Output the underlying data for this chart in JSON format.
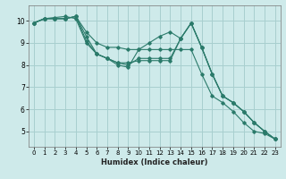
{
  "xlabel": "Humidex (Indice chaleur)",
  "xlim": [
    -0.5,
    23.5
  ],
  "ylim": [
    4.3,
    10.7
  ],
  "xticks": [
    0,
    1,
    2,
    3,
    4,
    5,
    6,
    7,
    8,
    9,
    10,
    11,
    12,
    13,
    14,
    15,
    16,
    17,
    18,
    19,
    20,
    21,
    22,
    23
  ],
  "yticks": [
    5,
    6,
    7,
    8,
    9,
    10
  ],
  "bg_color": "#ceeaea",
  "grid_color": "#a8cfcf",
  "line_color": "#2a7a6a",
  "lines": [
    {
      "x": [
        0,
        1,
        2,
        3,
        4,
        5,
        6,
        7,
        8,
        9,
        10,
        11,
        12,
        13,
        14,
        15,
        16,
        17,
        18,
        19,
        20,
        21,
        22,
        23
      ],
      "y": [
        9.9,
        10.1,
        10.1,
        10.1,
        10.2,
        9.5,
        9.0,
        8.8,
        8.8,
        8.7,
        8.7,
        8.7,
        8.7,
        8.7,
        8.7,
        8.7,
        7.6,
        6.6,
        6.3,
        5.9,
        5.4,
        5.0,
        4.9,
        4.65
      ]
    },
    {
      "x": [
        0,
        1,
        2,
        3,
        4,
        5,
        6,
        7,
        8,
        9,
        10,
        11,
        12,
        13,
        14,
        15,
        16,
        17,
        18,
        19,
        20,
        21,
        22,
        23
      ],
      "y": [
        9.9,
        10.1,
        10.1,
        10.1,
        10.2,
        9.3,
        8.5,
        8.3,
        8.1,
        8.1,
        8.2,
        8.2,
        8.2,
        8.2,
        9.2,
        9.9,
        8.8,
        7.6,
        6.6,
        6.3,
        5.9,
        5.4,
        5.0,
        4.65
      ]
    },
    {
      "x": [
        0,
        1,
        2,
        3,
        4,
        5,
        6,
        7,
        8,
        9,
        10,
        11,
        12,
        13,
        14,
        15,
        16,
        17,
        18,
        19,
        20,
        21,
        22,
        23
      ],
      "y": [
        9.9,
        10.1,
        10.15,
        10.2,
        10.1,
        9.0,
        8.5,
        8.3,
        8.0,
        7.9,
        8.7,
        9.0,
        9.3,
        9.5,
        9.2,
        9.9,
        8.8,
        7.6,
        6.6,
        6.3,
        5.9,
        5.4,
        5.0,
        4.65
      ]
    },
    {
      "x": [
        0,
        1,
        2,
        3,
        4,
        5,
        6,
        7,
        8,
        9,
        10,
        11,
        12,
        13,
        14,
        15,
        16,
        17,
        18,
        19,
        20,
        21,
        22,
        23
      ],
      "y": [
        9.9,
        10.1,
        10.1,
        10.1,
        10.2,
        9.1,
        8.5,
        8.3,
        8.1,
        8.0,
        8.3,
        8.3,
        8.3,
        8.3,
        9.2,
        9.9,
        8.8,
        7.6,
        6.6,
        6.3,
        5.9,
        5.4,
        5.0,
        4.65
      ]
    }
  ]
}
